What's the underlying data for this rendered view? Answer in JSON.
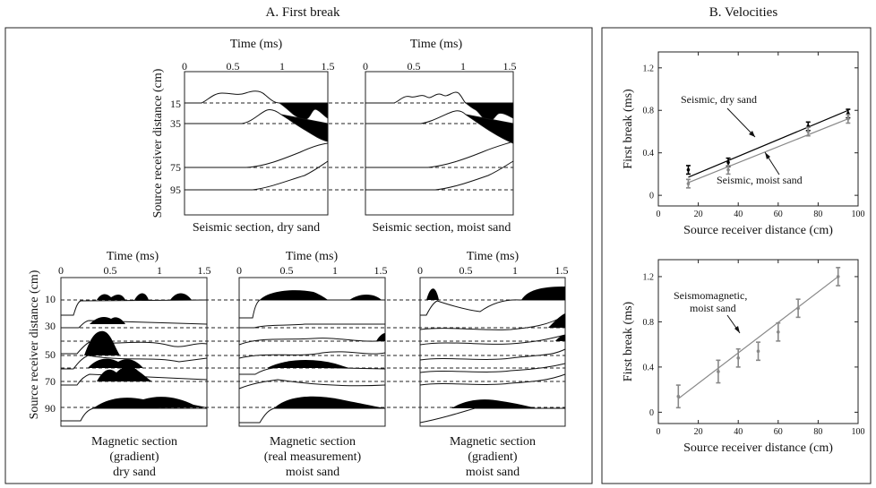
{
  "panel_a": {
    "title": "A. First break",
    "time_axis_label": "Time (ms)",
    "distance_axis_label": "Source receiver distance (cm)",
    "time_ticks": [
      "0",
      "0.5",
      "1",
      "1.5"
    ],
    "seismic_distance_ticks": [
      "15",
      "35",
      "75",
      "95"
    ],
    "magnetic_distance_ticks": [
      "10",
      "30",
      "50",
      "70",
      "90"
    ],
    "sections": [
      {
        "caption_lines": [
          "Seismic section, dry sand"
        ]
      },
      {
        "caption_lines": [
          "Seismic section, moist sand"
        ]
      },
      {
        "caption_lines": [
          "Magnetic section",
          "(gradient)",
          "dry sand"
        ]
      },
      {
        "caption_lines": [
          "Magnetic section",
          "(real measurement)",
          "moist sand"
        ]
      },
      {
        "caption_lines": [
          "Magnetic section",
          "(gradient)",
          "moist sand"
        ]
      }
    ]
  },
  "panel_b": {
    "title": "B. Velocities"
  },
  "chart_data": [
    {
      "type": "scatter",
      "xlabel": "Source receiver distance (cm)",
      "ylabel": "First break (ms)",
      "xlim": [
        0,
        100
      ],
      "ylim": [
        -0.1,
        1.35
      ],
      "x_ticks": [
        0,
        20,
        40,
        60,
        80,
        100
      ],
      "y_ticks": [
        0,
        0.4,
        0.8,
        1.2
      ],
      "series": [
        {
          "name": "Seismic, dry sand",
          "color": "#000000",
          "x": [
            15,
            35,
            75,
            95
          ],
          "y": [
            0.24,
            0.31,
            0.65,
            0.77
          ],
          "err": [
            0.04,
            0.04,
            0.04,
            0.04
          ],
          "fit": [
            [
              15,
              0.17
            ],
            [
              95,
              0.8
            ]
          ]
        },
        {
          "name": "Seismic, moist sand",
          "color": "#888888",
          "x": [
            15,
            35,
            75,
            95
          ],
          "y": [
            0.11,
            0.24,
            0.6,
            0.72
          ],
          "err": [
            0.04,
            0.04,
            0.04,
            0.04
          ],
          "fit": [
            [
              15,
              0.12
            ],
            [
              95,
              0.72
            ]
          ]
        }
      ]
    },
    {
      "type": "scatter",
      "xlabel": "Source receiver distance (cm)",
      "ylabel": "First break (ms)",
      "xlim": [
        0,
        100
      ],
      "ylim": [
        -0.1,
        1.35
      ],
      "x_ticks": [
        0,
        20,
        40,
        60,
        80,
        100
      ],
      "y_ticks": [
        0,
        0.4,
        0.8,
        1.2
      ],
      "series": [
        {
          "name": "Seismomagnetic, moist sand",
          "name_lines": [
            "Seismomagnetic,",
            "moist sand"
          ],
          "color": "#888888",
          "x": [
            10,
            30,
            40,
            50,
            60,
            70,
            90
          ],
          "y": [
            0.14,
            0.36,
            0.48,
            0.54,
            0.71,
            0.92,
            1.2
          ],
          "err": [
            0.1,
            0.1,
            0.08,
            0.08,
            0.08,
            0.08,
            0.08
          ],
          "fit": [
            [
              10,
              0.12
            ],
            [
              90,
              1.2
            ]
          ]
        }
      ]
    }
  ]
}
